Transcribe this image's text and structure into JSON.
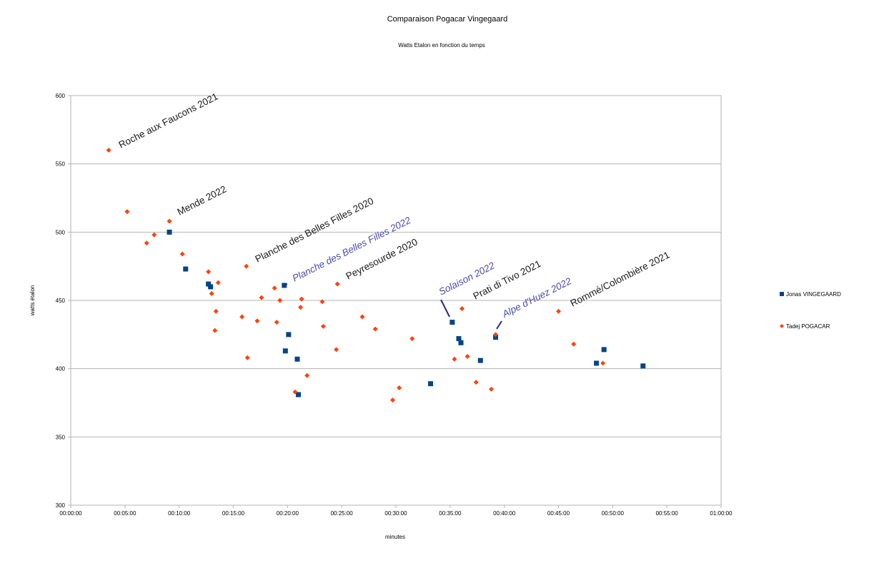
{
  "chart_data": {
    "type": "scatter",
    "title": "Comparaison Pogacar Vingegaard",
    "subtitle": "Watts  Etalon en fonction du temps",
    "xlabel": "minutes",
    "ylabel": "watts étalon",
    "xlim": [
      0,
      60
    ],
    "ylim": [
      300,
      600
    ],
    "x_unit": "minutes",
    "x_ticks": [
      "00:00:00",
      "00:05:00",
      "00:10:00",
      "00:15:00",
      "00:20:00",
      "00:25:00",
      "00:30:00",
      "00:35:00",
      "00:40:00",
      "00:45:00",
      "00:50:00",
      "00:55:00",
      "01:00:00"
    ],
    "y_ticks": [
      "300",
      "350",
      "400",
      "450",
      "500",
      "550",
      "600"
    ],
    "grid": "horizontal",
    "legend_position": "right",
    "series": [
      {
        "name": "Jonas VINGEGAARD",
        "color": "#004586",
        "marker": "square",
        "points": [
          [
            9.1,
            500
          ],
          [
            10.6,
            473
          ],
          [
            12.7,
            462
          ],
          [
            12.9,
            460
          ],
          [
            19.7,
            461
          ],
          [
            20.1,
            425
          ],
          [
            19.8,
            413
          ],
          [
            20.9,
            407
          ],
          [
            21.0,
            381
          ],
          [
            33.2,
            389
          ],
          [
            35.2,
            434
          ],
          [
            35.8,
            422
          ],
          [
            36.0,
            419
          ],
          [
            37.8,
            406
          ],
          [
            39.2,
            423
          ],
          [
            48.5,
            404
          ],
          [
            49.2,
            414
          ],
          [
            52.8,
            402
          ]
        ]
      },
      {
        "name": "Tadej POGACAR",
        "color": "#ff420e",
        "marker": "diamond",
        "points": [
          [
            3.5,
            560
          ],
          [
            5.2,
            515
          ],
          [
            7.0,
            492
          ],
          [
            7.7,
            498
          ],
          [
            9.1,
            508
          ],
          [
            10.3,
            484
          ],
          [
            12.7,
            471
          ],
          [
            13.0,
            455
          ],
          [
            13.6,
            463
          ],
          [
            13.4,
            442
          ],
          [
            13.3,
            428
          ],
          [
            15.8,
            438
          ],
          [
            16.3,
            408
          ],
          [
            16.2,
            475
          ],
          [
            17.2,
            435
          ],
          [
            17.6,
            452
          ],
          [
            18.8,
            459
          ],
          [
            19.0,
            434
          ],
          [
            19.3,
            450
          ],
          [
            20.7,
            383
          ],
          [
            21.2,
            445
          ],
          [
            21.3,
            451
          ],
          [
            21.8,
            395
          ],
          [
            23.2,
            449
          ],
          [
            23.3,
            431
          ],
          [
            24.5,
            414
          ],
          [
            24.6,
            462
          ],
          [
            26.9,
            438
          ],
          [
            28.1,
            429
          ],
          [
            29.7,
            377
          ],
          [
            30.3,
            386
          ],
          [
            31.5,
            422
          ],
          [
            35.4,
            407
          ],
          [
            36.1,
            444
          ],
          [
            36.6,
            409
          ],
          [
            37.4,
            390
          ],
          [
            38.8,
            385
          ],
          [
            39.2,
            425
          ],
          [
            45.0,
            442
          ],
          [
            46.4,
            418
          ],
          [
            49.1,
            404
          ]
        ]
      }
    ],
    "annotations": [
      {
        "text": "Roche aux Faucons 2021",
        "color": "dark"
      },
      {
        "text": "Mende 2022",
        "color": "dark"
      },
      {
        "text": "Planche des Belles Filles 2020",
        "color": "dark"
      },
      {
        "text": "Planche des Belles Filles 2022",
        "color": "blue"
      },
      {
        "text": "Peyresourde 2020",
        "color": "dark"
      },
      {
        "text": "Solaison 2022",
        "color": "blue"
      },
      {
        "text": "Prati di Tivo 2021",
        "color": "dark"
      },
      {
        "text": "Alpe d'Huez 2022",
        "color": "blue"
      },
      {
        "text": "Rommé/Colombière 2021",
        "color": "dark"
      }
    ]
  }
}
